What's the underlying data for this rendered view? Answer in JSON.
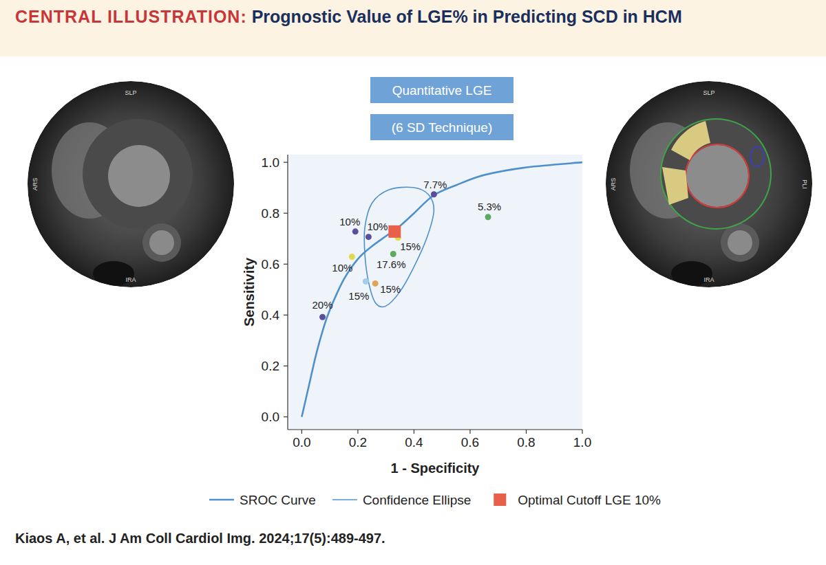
{
  "header": {
    "label": "CENTRAL ILLUSTRATION:",
    "title": "Prognostic Value of LGE% in Predicting SCD in HCM"
  },
  "badges": [
    "Quantitative LGE",
    "(6 SD Technique)"
  ],
  "images": [
    {
      "labels": [
        "SLP",
        "ARS",
        "IRA"
      ]
    },
    {
      "labels": [
        "SLP",
        "ARS",
        "IRA",
        "PLI"
      ]
    }
  ],
  "chart_data": {
    "type": "scatter",
    "xlabel": "1 - Specificity",
    "ylabel": "Sensitivity",
    "xlim": [
      -0.05,
      1.0
    ],
    "ylim": [
      -0.05,
      1.03
    ],
    "xticks": [
      {
        "value": 0,
        "label": "0.0"
      },
      0.2,
      0.4,
      0.6,
      0.8,
      {
        "value": 1,
        "label": "1.0"
      }
    ],
    "yticks": [
      {
        "value": 0,
        "label": "0.0"
      },
      0.2,
      0.4,
      0.6,
      0.8,
      {
        "value": 1,
        "label": "1.0"
      }
    ],
    "grid": false,
    "legend": "bottom",
    "series": [
      {
        "name": "SROC Curve",
        "type": "line",
        "line_style": "solid",
        "color": "#4f90cc",
        "x": [
          0,
          0.025,
          0.05,
          0.075,
          0.1,
          0.15,
          0.2,
          0.25,
          0.3,
          0.35,
          0.4,
          0.47,
          0.55,
          0.65,
          0.8,
          1.0
        ],
        "values": [
          0,
          0.12,
          0.24,
          0.34,
          0.42,
          0.54,
          0.62,
          0.67,
          0.71,
          0.75,
          0.8,
          0.87,
          0.91,
          0.95,
          0.98,
          1.0
        ]
      },
      {
        "name": "Confidence Ellipse",
        "type": "line",
        "line_style": "solid",
        "color": "#4f90cc",
        "x": [
          0.397,
          0.451,
          0.471,
          0.446,
          0.397,
          0.348,
          0.299,
          0.262,
          0.238,
          0.225,
          0.225,
          0.25,
          0.311,
          0.397
        ],
        "values": [
          0.901,
          0.874,
          0.812,
          0.704,
          0.583,
          0.489,
          0.435,
          0.449,
          0.53,
          0.637,
          0.745,
          0.839,
          0.892,
          0.901
        ]
      },
      {
        "type": "scatter",
        "marker": "circle",
        "x": [
          0.471,
          0.664,
          0.191,
          0.238,
          0.343,
          0.326,
          0.179,
          0.228,
          0.262,
          0.074
        ],
        "values": [
          0.874,
          0.785,
          0.728,
          0.707,
          0.704,
          0.64,
          0.629,
          0.532,
          0.524,
          0.392
        ],
        "labels": [
          "7.7%",
          "5.3%",
          "10%",
          "10%",
          "15%",
          "17.6%",
          "10%",
          "15%",
          "15%",
          "20%"
        ],
        "colors": [
          "#5b4f9c",
          "#5eaa5e",
          "#5b4f9c",
          "#5b4f9c",
          "#e2d84c",
          "#5eaa5e",
          "#e2d84c",
          "#a3cdea",
          "#e0a457",
          "#5b4f9c"
        ]
      },
      {
        "name": "Optimal Cutoff LGE 10%",
        "type": "scatter",
        "marker": "square",
        "color": "#e8604a",
        "x": [
          0.331
        ],
        "values": [
          0.728
        ]
      }
    ]
  },
  "citation": "Kiaos A, et al. J Am Coll Cardiol Img. 2024;17(5):489-497."
}
